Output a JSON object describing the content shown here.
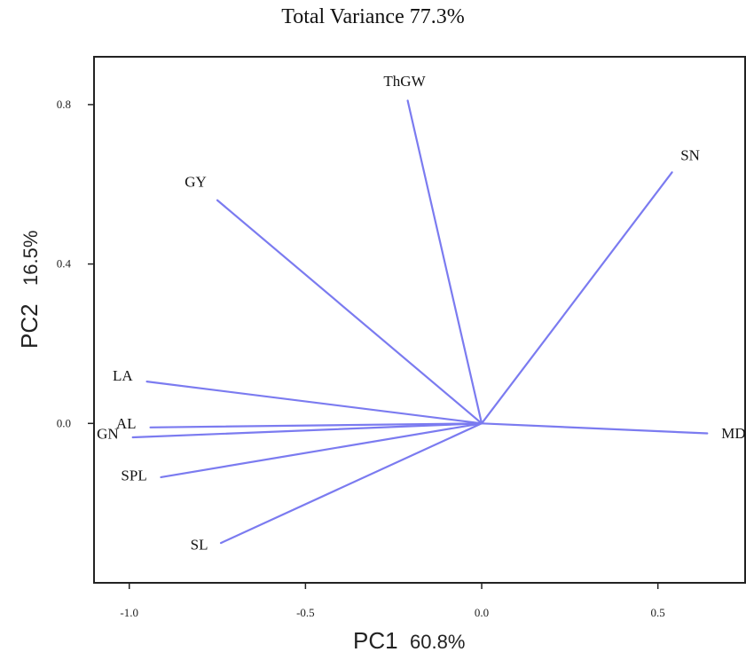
{
  "chart_data": {
    "type": "biplot",
    "title": "Total Variance 77.3%",
    "xlabel": "PC1",
    "xlabel_pct": "60.8%",
    "ylabel": "PC2",
    "ylabel_pct": "16.5%",
    "xlim": [
      -1.1,
      0.75
    ],
    "ylim": [
      -0.4,
      0.92
    ],
    "xticks": [
      -1.0,
      -0.5,
      0.0,
      0.5
    ],
    "xtick_labels": [
      "-1.0",
      "-0.5",
      "0.0",
      "0.5"
    ],
    "yticks": [
      0.0,
      0.4,
      0.8
    ],
    "ytick_labels": [
      "0.0",
      "0.4",
      "0.8"
    ],
    "vector_color": "#7b7bf0",
    "vectors": [
      {
        "name": "ThGW",
        "x": -0.21,
        "y": 0.81
      },
      {
        "name": "SN",
        "x": 0.54,
        "y": 0.63
      },
      {
        "name": "GY",
        "x": -0.75,
        "y": 0.56
      },
      {
        "name": "LA",
        "x": -0.95,
        "y": 0.105
      },
      {
        "name": "AL",
        "x": -0.94,
        "y": -0.01
      },
      {
        "name": "GN",
        "x": -0.99,
        "y": -0.035
      },
      {
        "name": "SPL",
        "x": -0.91,
        "y": -0.135
      },
      {
        "name": "SL",
        "x": -0.74,
        "y": -0.3
      },
      {
        "name": "MD",
        "x": 0.64,
        "y": -0.025
      }
    ]
  }
}
